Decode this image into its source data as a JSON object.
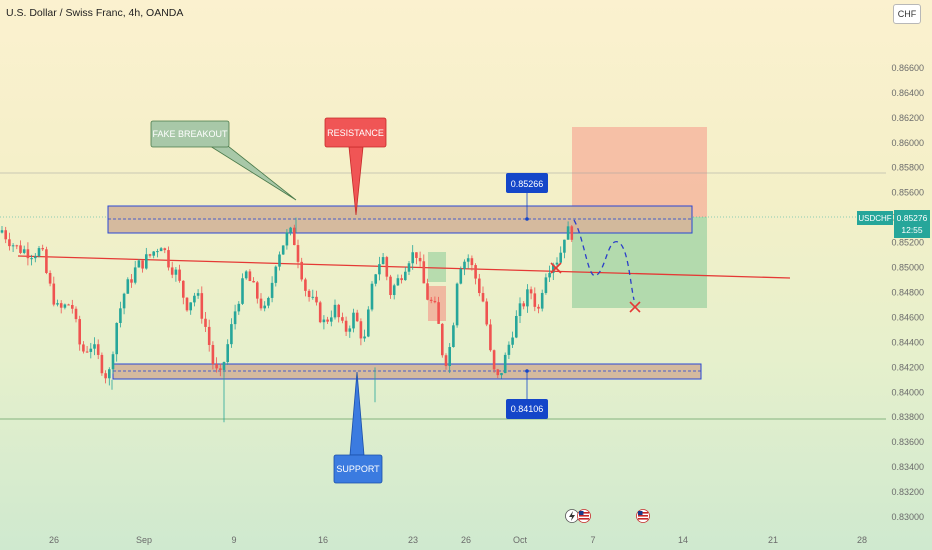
{
  "header": {
    "title": "U.S. Dollar / Swiss Franc, 4h, OANDA",
    "currency_button": "CHF"
  },
  "price_tag": {
    "symbol": "USDCHF",
    "price": "0.85276",
    "countdown": "12:55"
  },
  "annotations": {
    "fake_breakout": "FAKE BREAKOUT",
    "resistance": "RESISTANCE",
    "support": "SUPPORT",
    "resistance_level": "0.85266",
    "support_level": "0.84106"
  },
  "colors": {
    "bull": "#26a69a",
    "bear": "#ef5350",
    "zone_border": "#1f3fd6",
    "zone_fill": "#d4b89c",
    "trendline": "#e53935",
    "target_fill": "#f5b8a0",
    "stop_fill": "#a8d5ab",
    "callout_green": "#a8c8a8",
    "callout_red": "#f05555",
    "callout_blue": "#3b7be0",
    "level_label": "#1446c9"
  },
  "chart_data": {
    "type": "candlestick",
    "symbol": "USDCHF",
    "interval": "4h",
    "ylim": [
      0.83,
      0.868
    ],
    "y_ticks": [
      "0.86600",
      "0.86400",
      "0.86200",
      "0.86000",
      "0.85800",
      "0.85600",
      "0.85400",
      "0.85200",
      "0.85000",
      "0.84800",
      "0.84600",
      "0.84400",
      "0.84200",
      "0.84000",
      "0.83800",
      "0.83600",
      "0.83400",
      "0.83200",
      "0.83000"
    ],
    "x_ticks": [
      "26",
      "Sep",
      "9",
      "16",
      "23",
      "26",
      "Oct",
      "7",
      "14",
      "21",
      "28"
    ],
    "last_price": 0.85276,
    "resistance_zone": [
      0.8514,
      0.8535
    ],
    "support_zone": [
      0.8404,
      0.8416
    ],
    "resistance_level": 0.85266,
    "support_level": 0.84106
  }
}
